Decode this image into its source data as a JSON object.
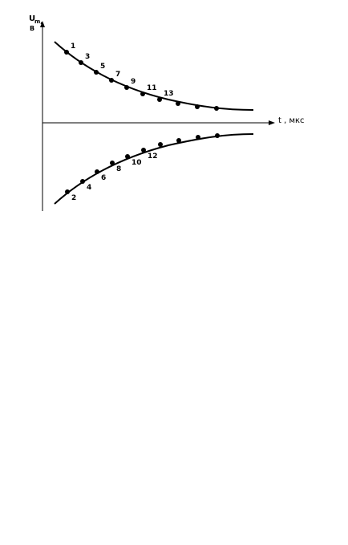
{
  "y_axis": {
    "symbol": "U",
    "subscript": "m,",
    "unit": "В"
  },
  "x_axis": {
    "label": "t , мкс"
  },
  "upper_curve": {
    "point_labels": [
      "1",
      "3",
      "5",
      "7",
      "9",
      "11",
      "13"
    ]
  },
  "lower_curve": {
    "point_labels": [
      "2",
      "4",
      "6",
      "8",
      "10",
      "12"
    ]
  }
}
